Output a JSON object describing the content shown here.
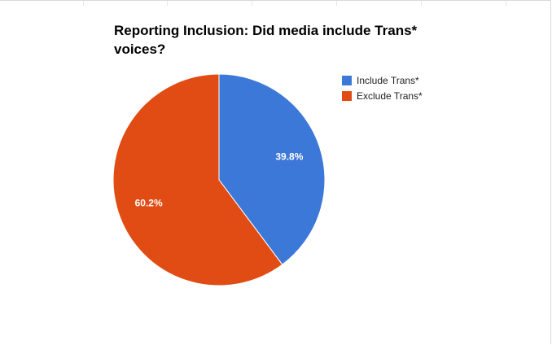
{
  "chart_data": {
    "type": "pie",
    "title": "Reporting Inclusion: Did media include Trans* voices?",
    "slices": [
      {
        "label": "Include Trans*",
        "value": 39.8,
        "display": "39.8%",
        "color": "#3c78d8"
      },
      {
        "label": "Exclude Trans*",
        "value": 60.2,
        "display": "60.2%",
        "color": "#e04c13"
      }
    ],
    "legend_position": "right"
  }
}
